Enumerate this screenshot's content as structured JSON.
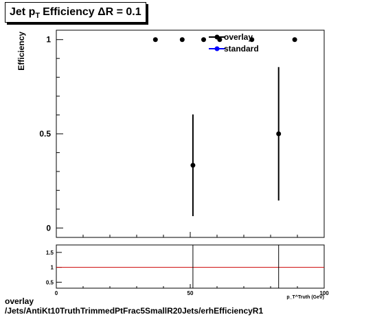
{
  "title": {
    "prefix": "Jet p",
    "subscript": "T",
    "suffix": "Efficiency  ΔR = 0.1"
  },
  "footer": {
    "line1": "overlay",
    "line2": "/Jets/AntiKt10TruthTrimmedPtFrac5SmallR20Jets/erhEfficiencyR1"
  },
  "colors": {
    "overlay": "#000000",
    "standard": "#0000ff",
    "ratio_line": "#cc0000"
  },
  "chart_data": [
    {
      "type": "scatter",
      "panel": "main",
      "ylabel": "Efficiency",
      "xlim": [
        0,
        100
      ],
      "ylim": [
        -0.05,
        1.05
      ],
      "y_ticks": [
        0,
        0.5,
        1
      ],
      "y_tick_labels": [
        "0",
        "0.5",
        "1"
      ],
      "legend": [
        "overlay",
        "standard"
      ],
      "legend_position": "top-right",
      "series": [
        {
          "name": "overlay",
          "points": [
            {
              "x": 37,
              "y": 1,
              "err": 0
            },
            {
              "x": 47,
              "y": 1,
              "err": 0
            },
            {
              "x": 51,
              "y": 0.333,
              "err": 0.27
            },
            {
              "x": 55,
              "y": 1,
              "err": 0
            },
            {
              "x": 61,
              "y": 1,
              "err": 0
            },
            {
              "x": 73,
              "y": 1,
              "err": 0
            },
            {
              "x": 83,
              "y": 0.5,
              "err": 0.354
            },
            {
              "x": 89,
              "y": 1,
              "err": 0
            }
          ]
        }
      ]
    },
    {
      "type": "line",
      "panel": "ratio",
      "xlabel": "p_T^Truth (GeV)",
      "xlim": [
        0,
        100
      ],
      "ylim": [
        0.3,
        1.75
      ],
      "x_ticks": [
        0,
        50,
        100
      ],
      "x_tick_labels": [
        "0",
        "50",
        "100"
      ],
      "y_ticks": [
        0.5,
        1,
        1.5
      ],
      "y_tick_labels": [
        "0.5",
        "1",
        "1.5"
      ],
      "reference_line": 1,
      "vertical_markers": [
        51,
        83
      ]
    }
  ]
}
